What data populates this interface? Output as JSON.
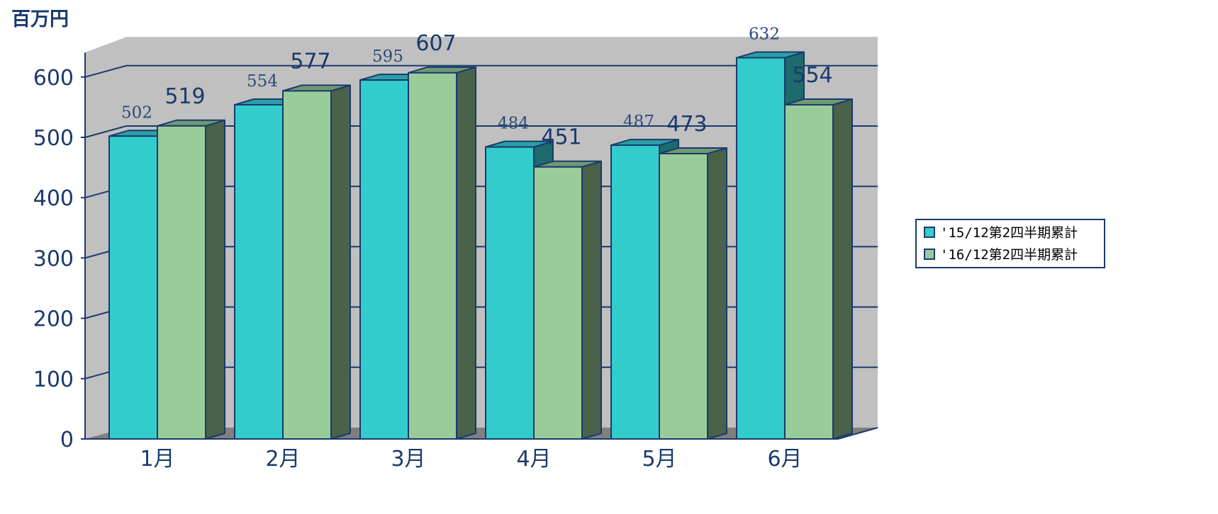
{
  "unit_label": "百万円",
  "chart_data": {
    "type": "bar",
    "categories": [
      "1月",
      "2月",
      "3月",
      "4月",
      "5月",
      "6月"
    ],
    "series": [
      {
        "name": "'15/12第2四半期累計",
        "values": [
          502,
          554,
          595,
          484,
          487,
          632
        ]
      },
      {
        "name": "'16/12第2四半期累計",
        "values": [
          519,
          577,
          607,
          451,
          473,
          554
        ]
      }
    ],
    "yticks": [
      0,
      100,
      200,
      300,
      400,
      500,
      600
    ],
    "ylim": [
      0,
      650
    ],
    "ylabel": "百万円",
    "legend_position": "right",
    "grid": true,
    "style": "3d"
  },
  "colors": {
    "series0": {
      "front": "#33cccc",
      "top": "#2aa0a6",
      "side": "#1d6b6b"
    },
    "series1": {
      "front": "#99cc99",
      "top": "#6f9a72",
      "side": "#4a614a"
    },
    "wall": "#c0c0c0",
    "floor": "#7f7f7f",
    "line": "#1a3a6e"
  }
}
